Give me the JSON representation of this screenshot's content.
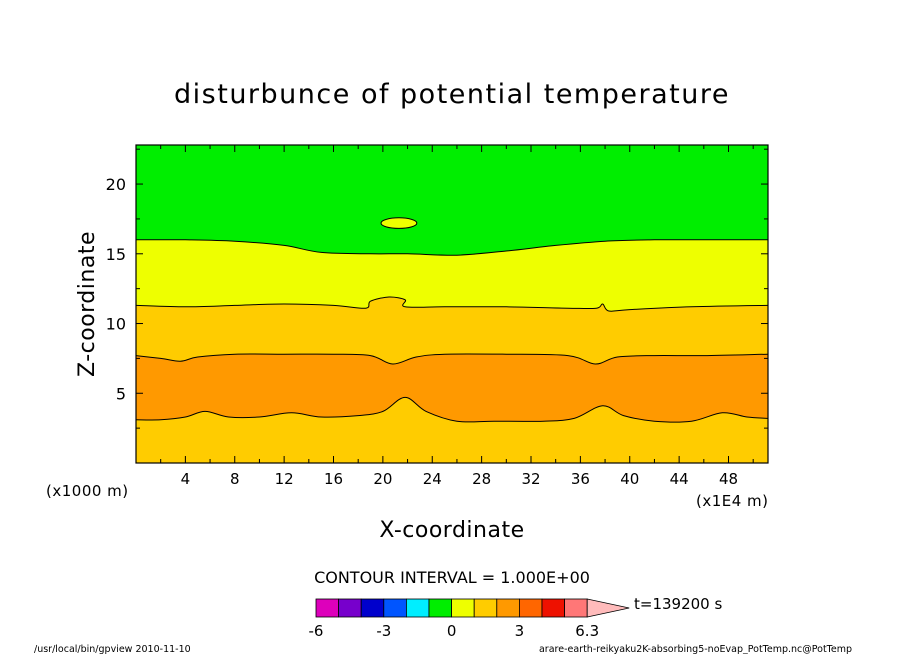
{
  "chart_data": {
    "type": "contour",
    "title": "disturbunce of potential temperature",
    "xlabel": "X-coordinate",
    "ylabel": "Z-coordinate",
    "x_unit_label": "(x1E4 m)",
    "y_unit_label": "(x1000 m)",
    "xlim": [
      0,
      51.2
    ],
    "ylim": [
      0,
      22.8
    ],
    "x_ticks": [
      4,
      8,
      12,
      16,
      20,
      24,
      28,
      32,
      36,
      40,
      44,
      48
    ],
    "y_ticks": [
      5,
      10,
      15,
      20
    ],
    "bands": [
      {
        "from_z": 0,
        "to_z": 3.1,
        "color": "#ffcc00"
      },
      {
        "from_z": 3.1,
        "to_z": 7.7,
        "color": "#ff9900"
      },
      {
        "from_z": 7.7,
        "to_z": 11.3,
        "color": "#ffcc00"
      },
      {
        "from_z": 11.3,
        "to_z": 16.0,
        "color": "#eeff00"
      },
      {
        "from_z": 16.0,
        "to_z": 22.8,
        "color": "#00ee00"
      }
    ],
    "contours": [
      {
        "level": "lower",
        "points": [
          [
            0,
            3.1
          ],
          [
            2,
            3.1
          ],
          [
            4,
            3.3
          ],
          [
            5.6,
            3.7
          ],
          [
            7.5,
            3.3
          ],
          [
            10,
            3.3
          ],
          [
            12.6,
            3.6
          ],
          [
            15,
            3.3
          ],
          [
            18,
            3.4
          ],
          [
            20,
            3.7
          ],
          [
            21.8,
            4.7
          ],
          [
            23.5,
            3.7
          ],
          [
            26,
            3.0
          ],
          [
            29,
            3.0
          ],
          [
            33,
            3.0
          ],
          [
            35.5,
            3.2
          ],
          [
            37.8,
            4.1
          ],
          [
            39.5,
            3.4
          ],
          [
            42,
            3.0
          ],
          [
            45,
            3.0
          ],
          [
            47.5,
            3.6
          ],
          [
            49.5,
            3.3
          ],
          [
            51.2,
            3.2
          ]
        ]
      },
      {
        "level": "middle",
        "points": [
          [
            0,
            7.7
          ],
          [
            2,
            7.5
          ],
          [
            3.6,
            7.3
          ],
          [
            5,
            7.6
          ],
          [
            8,
            7.8
          ],
          [
            12,
            7.8
          ],
          [
            16,
            7.8
          ],
          [
            19,
            7.7
          ],
          [
            20.8,
            7.1
          ],
          [
            22.7,
            7.6
          ],
          [
            25,
            7.8
          ],
          [
            30,
            7.8
          ],
          [
            35,
            7.7
          ],
          [
            37.2,
            7.1
          ],
          [
            39,
            7.6
          ],
          [
            42,
            7.7
          ],
          [
            46,
            7.7
          ],
          [
            51.2,
            7.8
          ]
        ]
      },
      {
        "level": "upper",
        "points": [
          [
            0,
            11.3
          ],
          [
            4,
            11.2
          ],
          [
            8,
            11.3
          ],
          [
            12,
            11.4
          ],
          [
            16,
            11.3
          ],
          [
            18.6,
            11.1
          ],
          [
            19,
            11.6
          ],
          [
            20.5,
            11.9
          ],
          [
            21.8,
            11.7
          ],
          [
            21.8,
            11.2
          ],
          [
            25,
            11.2
          ],
          [
            30,
            11.2
          ],
          [
            35,
            11.1
          ],
          [
            37.3,
            11.1
          ],
          [
            37.8,
            11.4
          ],
          [
            38.3,
            10.9
          ],
          [
            40,
            11.0
          ],
          [
            45,
            11.2
          ],
          [
            51.2,
            11.3
          ]
        ]
      },
      {
        "level": "top",
        "points": [
          [
            0,
            16.0
          ],
          [
            4,
            16.0
          ],
          [
            8,
            15.9
          ],
          [
            12,
            15.6
          ],
          [
            15,
            15.1
          ],
          [
            19,
            15.0
          ],
          [
            22,
            15.0
          ],
          [
            26,
            14.9
          ],
          [
            30,
            15.2
          ],
          [
            34,
            15.6
          ],
          [
            38,
            15.9
          ],
          [
            42,
            16.0
          ],
          [
            46,
            16.0
          ],
          [
            51.2,
            16.0
          ]
        ]
      }
    ],
    "closed_contours": [
      {
        "cx": 21.3,
        "cz": 17.2,
        "rx": 1.45,
        "rz": 0.38,
        "color": "#eeff00"
      }
    ],
    "contour_interval_text": "CONTOUR INTERVAL = 1.000E+00",
    "time_text": "t=139200 s",
    "colorbar": {
      "colors": [
        "#dd00bb",
        "#7700cc",
        "#0000cc",
        "#0055ff",
        "#00eeff",
        "#00ee00",
        "#eeff00",
        "#ffcc00",
        "#ff9900",
        "#ff6600",
        "#ee1100",
        "#ff7777",
        "#ffbbbb"
      ],
      "labels": [
        "-6",
        "-3",
        "0",
        "3",
        "6.3"
      ]
    },
    "footer_left": "/usr/local/bin/gpview   2010-11-10",
    "footer_right": "arare-earth-reikyaku2K-absorbing5-noEvap_PotTemp.nc@PotTemp"
  }
}
